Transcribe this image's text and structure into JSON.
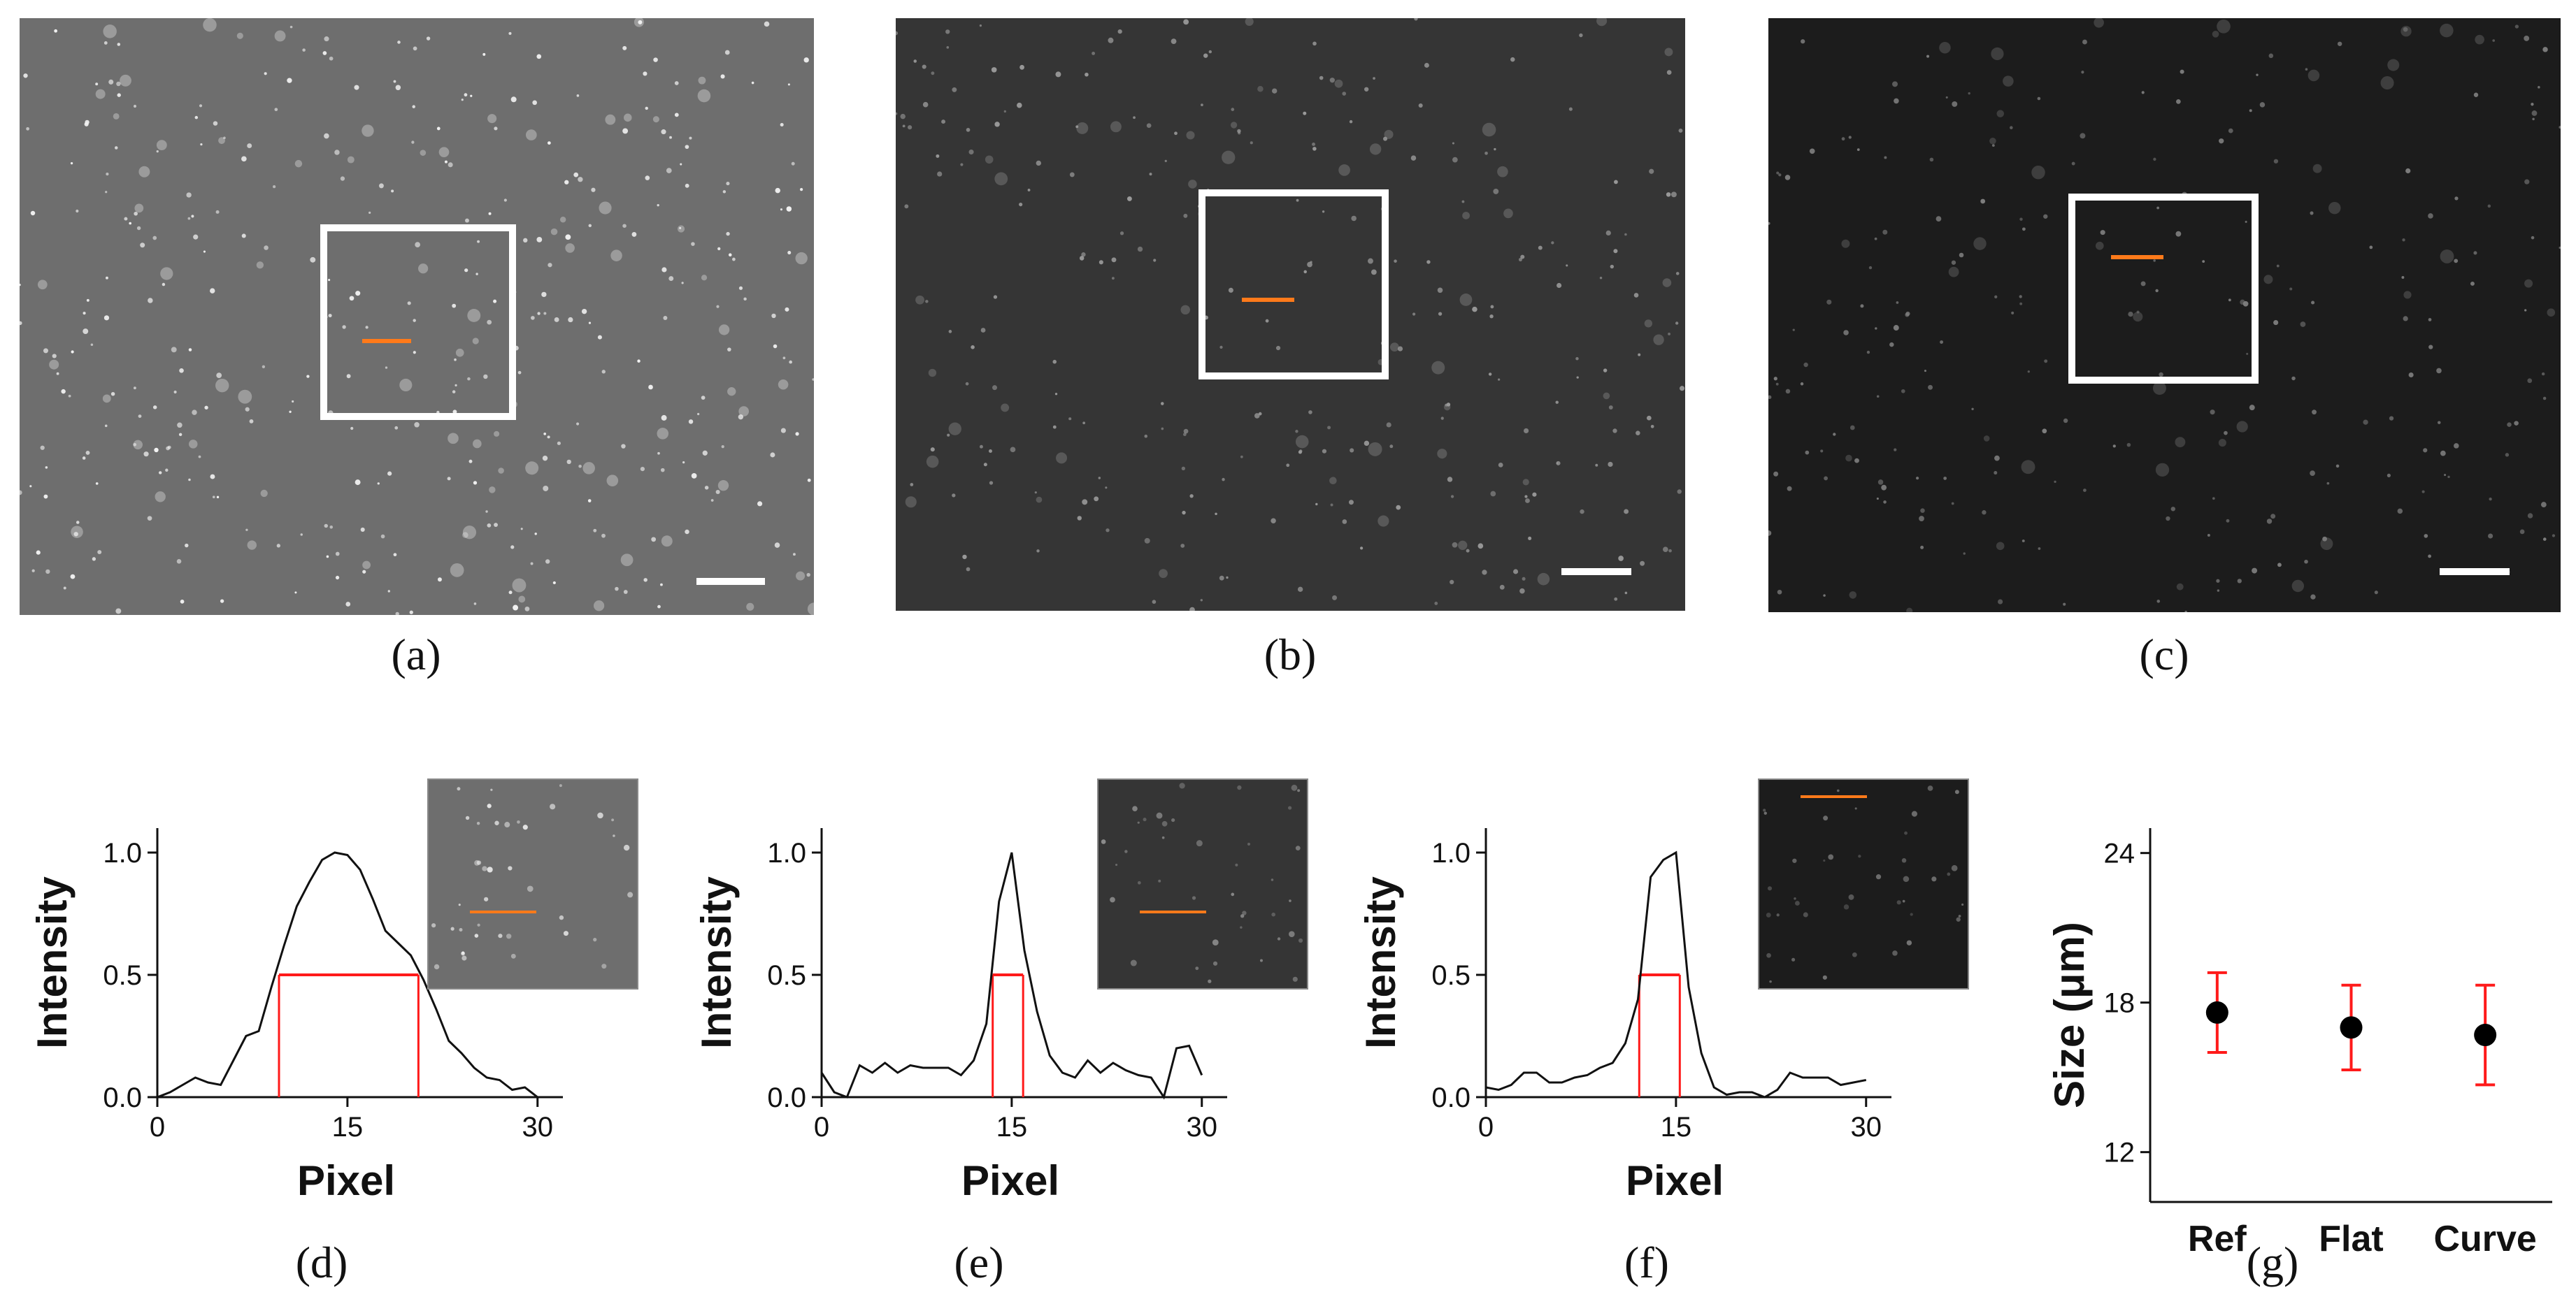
{
  "captions": {
    "a": "(a)",
    "b": "(b)",
    "c": "(c)",
    "d": "(d)",
    "e": "(e)",
    "f": "(f)",
    "g": "(g)"
  },
  "micrographs": [
    {
      "id": "a",
      "background": "#6e6e6e",
      "dot_color": "#f2f2f2"
    },
    {
      "id": "b",
      "background": "#353535",
      "dot_color": "#9a9a9a"
    },
    {
      "id": "c",
      "background": "#1c1c1c",
      "dot_color": "#7d7d7d"
    }
  ],
  "colors": {
    "roi_box": "#ffffff",
    "line_profile": "#ff7a1a",
    "fwhm": "#ff1a1a",
    "curve": "#111111",
    "marker": "#000000",
    "error_bar": "#ff1a1a"
  },
  "chart_data": [
    {
      "id": "d",
      "type": "line",
      "xlabel": "Pixel",
      "ylabel": "Intensity",
      "xlim": [
        0,
        32
      ],
      "ylim": [
        0,
        1.1
      ],
      "xticks": [
        0,
        15,
        30
      ],
      "yticks": [
        0.0,
        0.5,
        1.0
      ],
      "xtick_labels": [
        "0",
        "15",
        "30"
      ],
      "ytick_labels": [
        "0.0",
        "0.5",
        "1.0"
      ],
      "x": [
        0,
        1,
        2,
        3,
        4,
        5,
        6,
        7,
        8,
        9,
        10,
        11,
        12,
        13,
        14,
        15,
        16,
        17,
        18,
        19,
        20,
        21,
        22,
        23,
        24,
        25,
        26,
        27,
        28,
        29,
        30
      ],
      "y": [
        0.0,
        0.02,
        0.05,
        0.08,
        0.06,
        0.05,
        0.15,
        0.25,
        0.27,
        0.45,
        0.62,
        0.78,
        0.88,
        0.97,
        1.0,
        0.99,
        0.93,
        0.81,
        0.68,
        0.63,
        0.58,
        0.48,
        0.36,
        0.23,
        0.18,
        0.12,
        0.08,
        0.07,
        0.03,
        0.04,
        0.0
      ],
      "fwhm": {
        "left": 9.6,
        "right": 20.6,
        "half": 0.5
      }
    },
    {
      "id": "e",
      "type": "line",
      "xlabel": "Pixel",
      "ylabel": "Intensity",
      "xlim": [
        0,
        32
      ],
      "ylim": [
        0,
        1.1
      ],
      "xticks": [
        0,
        15,
        30
      ],
      "yticks": [
        0.0,
        0.5,
        1.0
      ],
      "xtick_labels": [
        "0",
        "15",
        "30"
      ],
      "ytick_labels": [
        "0.0",
        "0.5",
        "1.0"
      ],
      "x": [
        0,
        1,
        2,
        3,
        4,
        5,
        6,
        7,
        8,
        9,
        10,
        11,
        12,
        13,
        14,
        15,
        16,
        17,
        18,
        19,
        20,
        21,
        22,
        23,
        24,
        25,
        26,
        27,
        28,
        29,
        30
      ],
      "y": [
        0.1,
        0.02,
        0.0,
        0.13,
        0.1,
        0.14,
        0.1,
        0.13,
        0.12,
        0.12,
        0.12,
        0.09,
        0.15,
        0.3,
        0.8,
        1.0,
        0.6,
        0.35,
        0.17,
        0.1,
        0.08,
        0.15,
        0.1,
        0.14,
        0.11,
        0.09,
        0.08,
        0.0,
        0.2,
        0.21,
        0.09
      ],
      "fwhm": {
        "left": 13.5,
        "right": 15.9,
        "half": 0.5
      }
    },
    {
      "id": "f",
      "type": "line",
      "xlabel": "Pixel",
      "ylabel": "Intensity",
      "xlim": [
        0,
        32
      ],
      "ylim": [
        0,
        1.1
      ],
      "xticks": [
        0,
        15,
        30
      ],
      "yticks": [
        0.0,
        0.5,
        1.0
      ],
      "xtick_labels": [
        "0",
        "15",
        "30"
      ],
      "ytick_labels": [
        "0.0",
        "0.5",
        "1.0"
      ],
      "x": [
        0,
        1,
        2,
        3,
        4,
        5,
        6,
        7,
        8,
        9,
        10,
        11,
        12,
        13,
        14,
        15,
        16,
        17,
        18,
        19,
        20,
        21,
        22,
        23,
        24,
        25,
        26,
        27,
        28,
        29,
        30
      ],
      "y": [
        0.04,
        0.03,
        0.05,
        0.1,
        0.1,
        0.06,
        0.06,
        0.08,
        0.09,
        0.12,
        0.14,
        0.22,
        0.4,
        0.9,
        0.97,
        1.0,
        0.45,
        0.18,
        0.04,
        0.01,
        0.02,
        0.02,
        0.0,
        0.03,
        0.1,
        0.08,
        0.08,
        0.08,
        0.05,
        0.06,
        0.07
      ],
      "fwhm": {
        "left": 12.1,
        "right": 15.3,
        "half": 0.5
      }
    },
    {
      "id": "g",
      "type": "scatter",
      "xlabel": "",
      "ylabel": "Size (μm)",
      "categories": [
        "Ref",
        "Flat",
        "Curve"
      ],
      "values": [
        17.6,
        17.0,
        16.7
      ],
      "errors": [
        1.6,
        1.7,
        2.0
      ],
      "ylim": [
        10,
        25
      ],
      "yticks": [
        12,
        18,
        24
      ],
      "ytick_labels": [
        "12",
        "18",
        "24"
      ]
    }
  ]
}
